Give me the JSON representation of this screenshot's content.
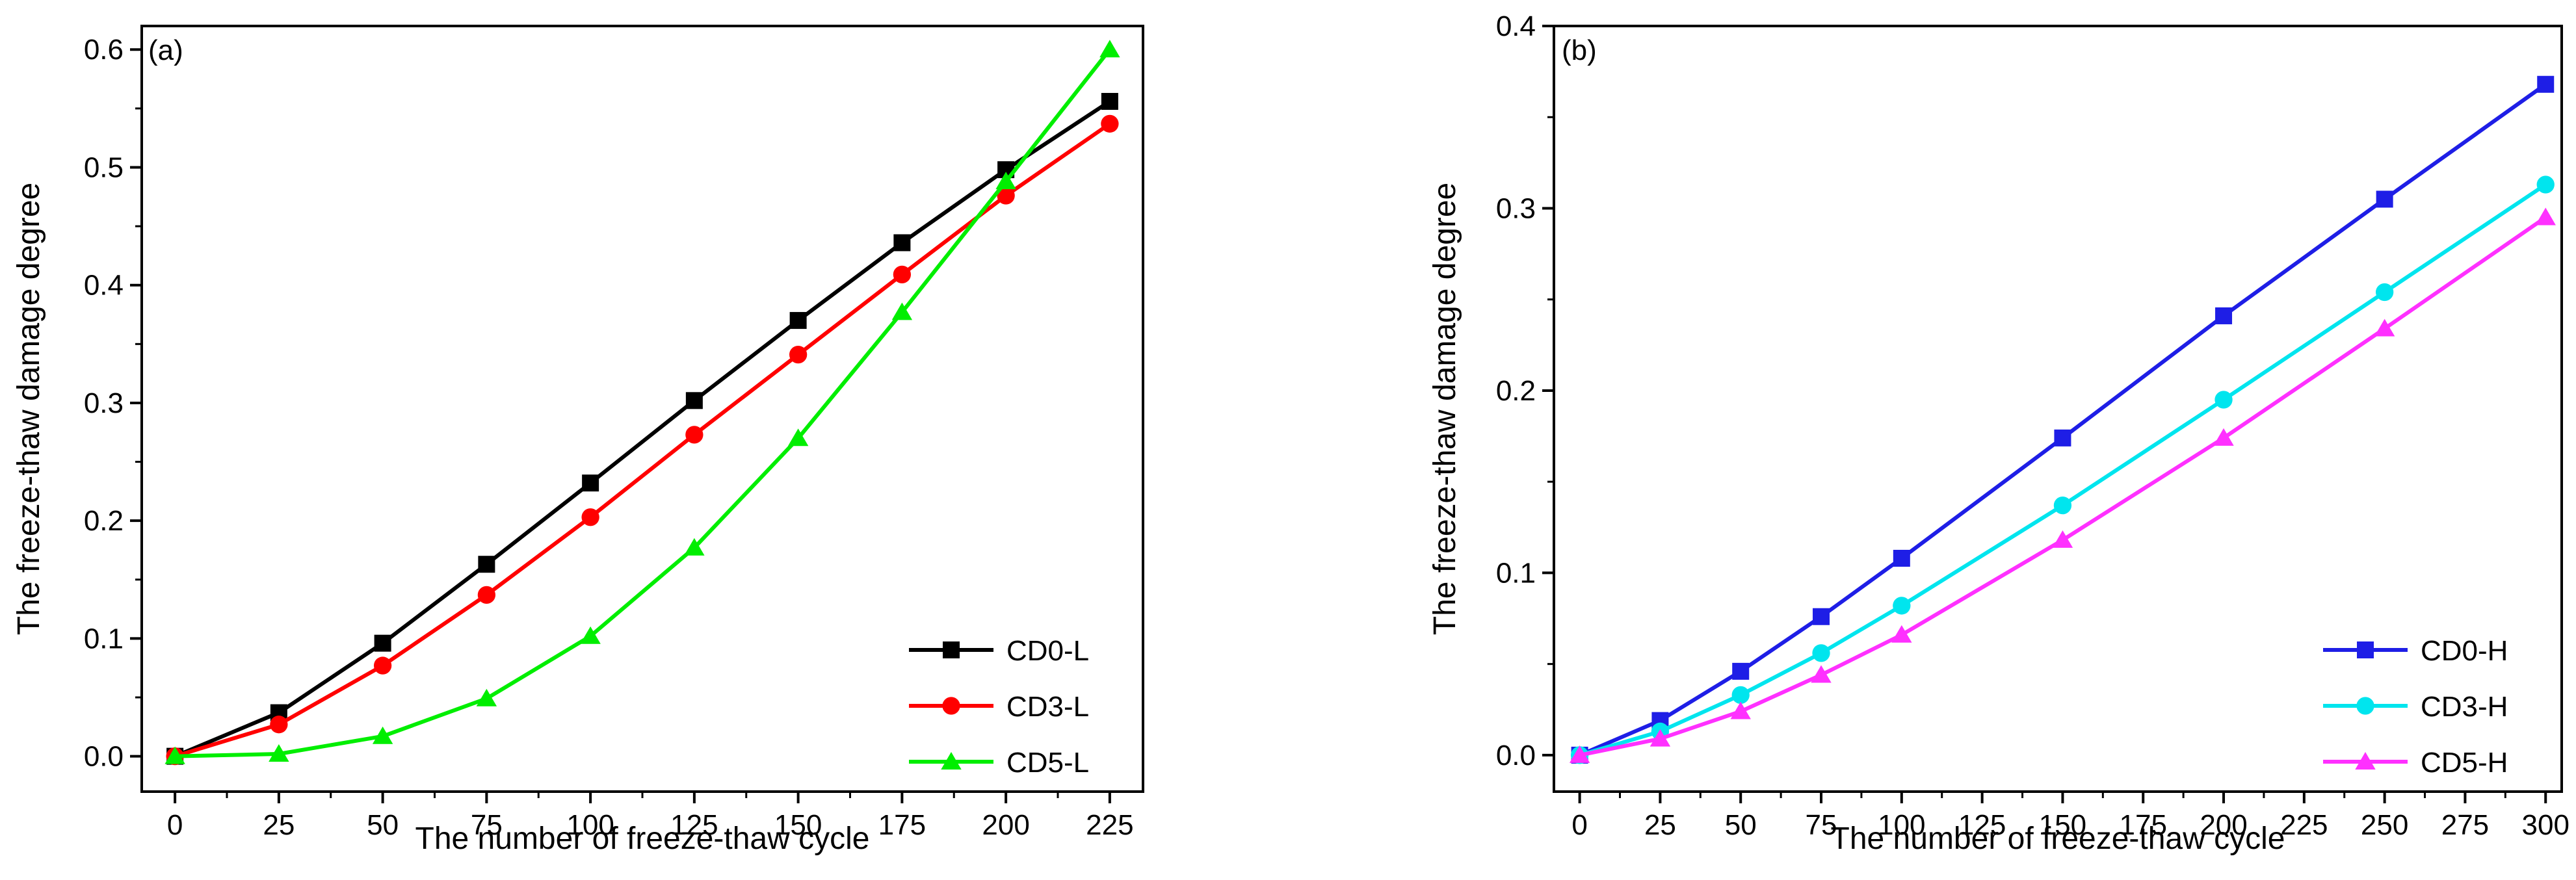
{
  "chart_data": [
    {
      "type": "line",
      "panel_label": "(a)",
      "title": "",
      "xlabel": "The number of freeze-thaw cycle",
      "ylabel": "The freeze-thaw damage degree",
      "xlim": [
        -8,
        233
      ],
      "ylim": [
        -0.03,
        0.62
      ],
      "xticks": [
        0,
        25,
        50,
        75,
        100,
        125,
        150,
        175,
        200,
        225
      ],
      "yticks": [
        0.0,
        0.1,
        0.2,
        0.3,
        0.4,
        0.5,
        0.6
      ],
      "ytick_labels": [
        "0.0",
        "0.1",
        "0.2",
        "0.3",
        "0.4",
        "0.5",
        "0.6"
      ],
      "legend_position": "bottom-right",
      "series": [
        {
          "name": "CD0-L",
          "color": "#000000",
          "marker": "square",
          "x": [
            0,
            25,
            50,
            75,
            100,
            125,
            150,
            175,
            200,
            225
          ],
          "y": [
            0.0,
            0.037,
            0.096,
            0.163,
            0.232,
            0.302,
            0.37,
            0.436,
            0.498,
            0.556
          ]
        },
        {
          "name": "CD3-L",
          "color": "#ff0000",
          "marker": "circle",
          "x": [
            0,
            25,
            50,
            75,
            100,
            125,
            150,
            175,
            200,
            225
          ],
          "y": [
            0.0,
            0.027,
            0.077,
            0.137,
            0.203,
            0.273,
            0.341,
            0.409,
            0.476,
            0.537
          ]
        },
        {
          "name": "CD5-L",
          "color": "#00ee00",
          "marker": "triangle",
          "x": [
            0,
            25,
            50,
            75,
            100,
            125,
            150,
            175,
            200,
            225
          ],
          "y": [
            0.0,
            0.002,
            0.017,
            0.049,
            0.102,
            0.177,
            0.27,
            0.377,
            0.488,
            0.6
          ]
        }
      ]
    },
    {
      "type": "line",
      "panel_label": "(b)",
      "title": "",
      "xlabel": "The number of freeze-thaw cycle",
      "ylabel": "The freeze-thaw damage degree",
      "xlim": [
        -8,
        305
      ],
      "ylim": [
        -0.02,
        0.4
      ],
      "xticks": [
        0,
        25,
        50,
        75,
        100,
        125,
        150,
        175,
        200,
        225,
        250,
        275,
        300
      ],
      "yticks": [
        0.0,
        0.1,
        0.2,
        0.3,
        0.4
      ],
      "ytick_labels": [
        "0.0",
        "0.1",
        "0.2",
        "0.3",
        "0.4"
      ],
      "legend_position": "bottom-right",
      "series": [
        {
          "name": "CD0-H",
          "color": "#1e1ee6",
          "marker": "square",
          "x": [
            0,
            25,
            50,
            75,
            100,
            150,
            200,
            250,
            300
          ],
          "y": [
            0.0,
            0.019,
            0.046,
            0.076,
            0.108,
            0.174,
            0.241,
            0.305,
            0.368
          ]
        },
        {
          "name": "CD3-H",
          "color": "#00e5ee",
          "marker": "circle",
          "x": [
            0,
            25,
            50,
            75,
            100,
            150,
            200,
            250,
            300
          ],
          "y": [
            0.0,
            0.013,
            0.033,
            0.056,
            0.082,
            0.137,
            0.195,
            0.254,
            0.313
          ]
        },
        {
          "name": "CD5-H",
          "color": "#ff30ff",
          "marker": "triangle",
          "x": [
            0,
            25,
            50,
            75,
            100,
            150,
            200,
            250,
            300
          ],
          "y": [
            0.0,
            0.009,
            0.024,
            0.044,
            0.066,
            0.118,
            0.174,
            0.234,
            0.295
          ]
        }
      ]
    }
  ]
}
